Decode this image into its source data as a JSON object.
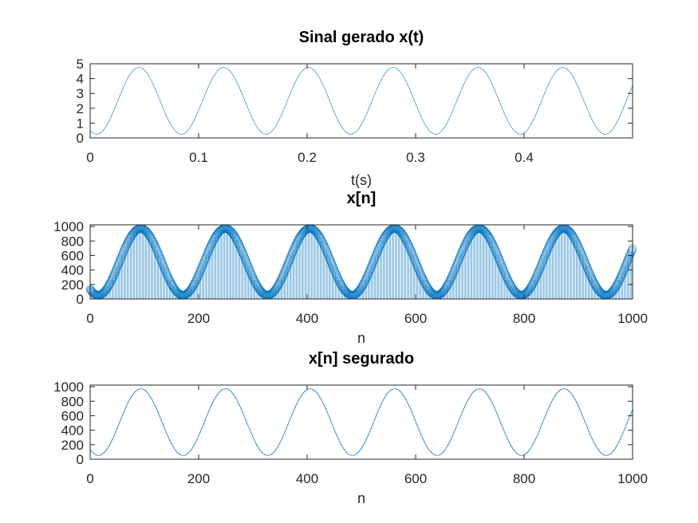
{
  "chart_data": [
    {
      "type": "line",
      "title": "Sinal gerado x(t)",
      "xlabel": "t(s)",
      "ylabel": "",
      "xlim": [
        0,
        0.5
      ],
      "ylim": [
        0,
        5
      ],
      "xticks": [
        0,
        0.1,
        0.2,
        0.3,
        0.4
      ],
      "xtick_labels": [
        "0",
        "0.1",
        "0.2",
        "0.3",
        "0.4"
      ],
      "yticks": [
        0,
        1,
        2,
        3,
        4,
        5
      ],
      "ytick_labels": [
        "0",
        "1",
        "2",
        "3",
        "4",
        "5"
      ],
      "grid": false,
      "color": "#0072bd",
      "series": [
        {
          "signal": "sine",
          "offset": 2.5,
          "amplitude": 2.25,
          "frequency_hz": 12.8,
          "x_start": 0,
          "x_end": 0.5,
          "peaks_at": [
            0.045,
            0.123,
            0.201,
            0.279,
            0.357,
            0.436
          ]
        }
      ]
    },
    {
      "type": "stem",
      "title": "x[n]",
      "xlabel": "n",
      "ylabel": "",
      "xlim": [
        0,
        1000
      ],
      "ylim": [
        0,
        1023
      ],
      "xticks": [
        0,
        200,
        400,
        600,
        800,
        1000
      ],
      "xtick_labels": [
        "0",
        "200",
        "400",
        "600",
        "800",
        "1000"
      ],
      "yticks": [
        0,
        200,
        400,
        600,
        800,
        1000
      ],
      "ytick_labels": [
        "0",
        "200",
        "400",
        "600",
        "800",
        "1000"
      ],
      "grid": false,
      "color": "#0072bd",
      "series": [
        {
          "signal": "sine",
          "offset": 512,
          "amplitude": 460,
          "period_samples": 156,
          "n_start": 0,
          "n_end": 1000,
          "marker": "circle"
        }
      ]
    },
    {
      "type": "line",
      "title": "x[n] segurado",
      "xlabel": "n",
      "ylabel": "",
      "xlim": [
        0,
        1000
      ],
      "ylim": [
        0,
        1023
      ],
      "xticks": [
        0,
        200,
        400,
        600,
        800,
        1000
      ],
      "xtick_labels": [
        "0",
        "200",
        "400",
        "600",
        "800",
        "1000"
      ],
      "yticks": [
        0,
        200,
        400,
        600,
        800,
        1000
      ],
      "ytick_labels": [
        "0",
        "200",
        "400",
        "600",
        "800",
        "1000"
      ],
      "grid": false,
      "color": "#0072bd",
      "series": [
        {
          "signal": "sine",
          "offset": 512,
          "amplitude": 460,
          "period_samples": 156,
          "n_start": 0,
          "n_end": 1000,
          "step": "hold"
        }
      ]
    }
  ]
}
